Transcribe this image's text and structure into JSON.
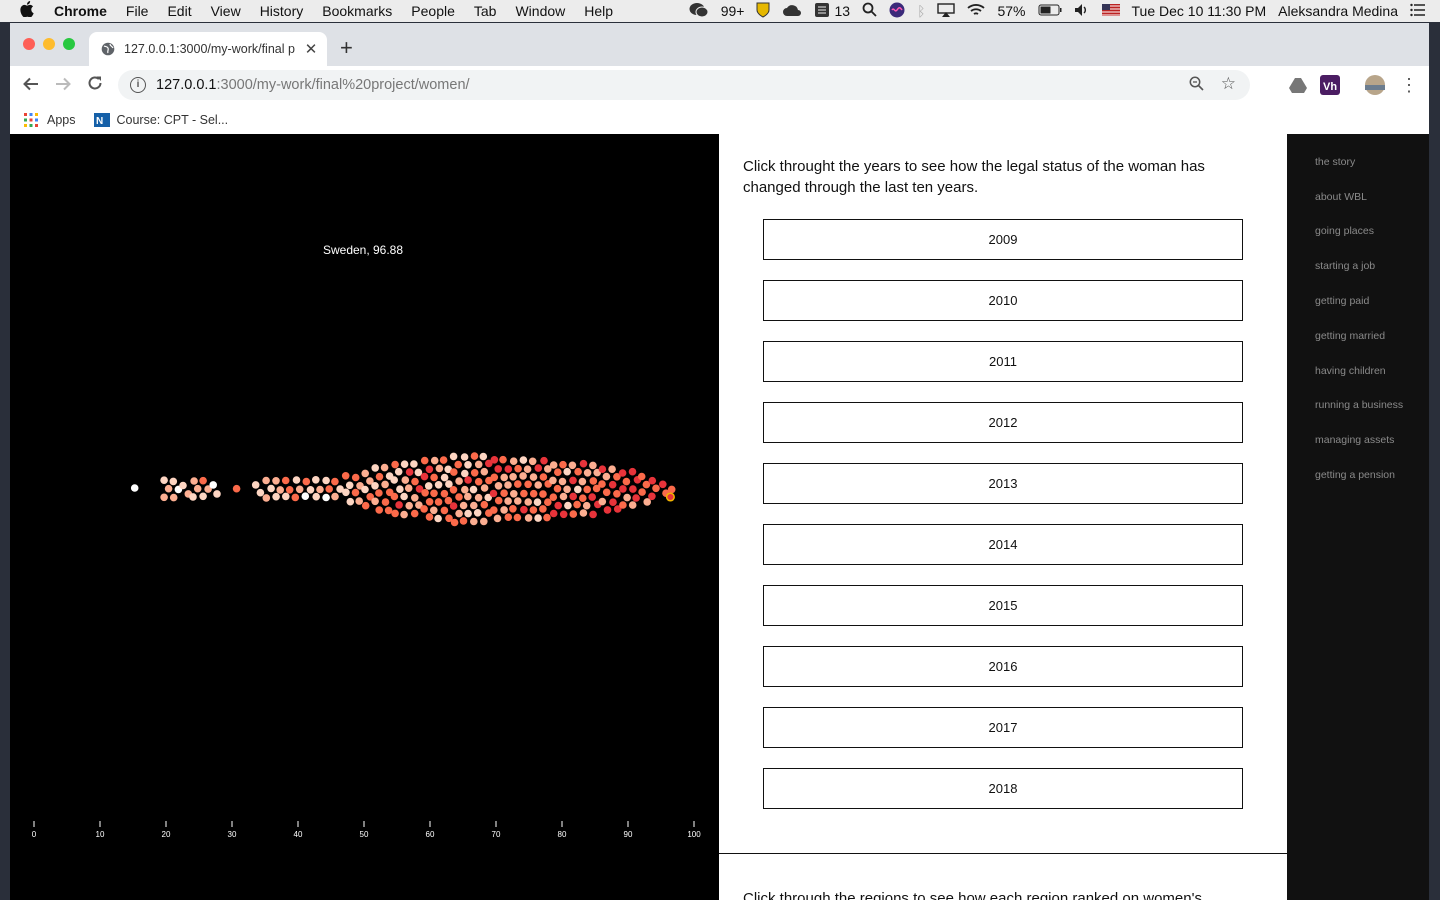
{
  "menubar": {
    "app": "Chrome",
    "items": [
      "File",
      "Edit",
      "View",
      "History",
      "Bookmarks",
      "People",
      "Tab",
      "Window",
      "Help"
    ],
    "wechat_count": "99+",
    "stack_count": "13",
    "battery": "57%",
    "datetime": "Tue Dec 10  11:30 PM",
    "user": "Aleksandra Medina"
  },
  "browser": {
    "tab_title": "127.0.0.1:3000/my-work/final p",
    "url_host": "127.0.0.1",
    "url_path": ":3000/my-work/final%20project/women/",
    "bookmarks": [
      "Apps",
      "Course: CPT - Sel..."
    ]
  },
  "viz": {
    "tooltip": "Sweden, 96.88",
    "axis_ticks": [
      "0",
      "10",
      "20",
      "30",
      "40",
      "50",
      "60",
      "70",
      "80",
      "90",
      "100"
    ]
  },
  "content": {
    "intro": "Click throught the years to see how the legal status of the woman has changed through the last ten years.",
    "years": [
      "2009",
      "2010",
      "2011",
      "2012",
      "2013",
      "2014",
      "2015",
      "2016",
      "2017",
      "2018"
    ],
    "intro2": "Click through the regions to see how each region ranked on women's"
  },
  "sidenav": {
    "items": [
      "the story",
      "about WBL",
      "going places",
      "starting a job",
      "getting paid",
      "getting married",
      "having children",
      "running a business",
      "managing assets",
      "getting a pension"
    ]
  },
  "chart_data": {
    "type": "scatter",
    "x_axis_range": [
      0,
      100
    ],
    "x_ticks": [
      0,
      10,
      20,
      30,
      40,
      50,
      60,
      70,
      80,
      90,
      100
    ],
    "highlighted_point": {
      "label": "Sweden",
      "value": 96.88
    },
    "palette": [
      "#ffffff",
      "#fdd5c2",
      "#fcae91",
      "#fb6a4a",
      "#e8333a"
    ]
  }
}
